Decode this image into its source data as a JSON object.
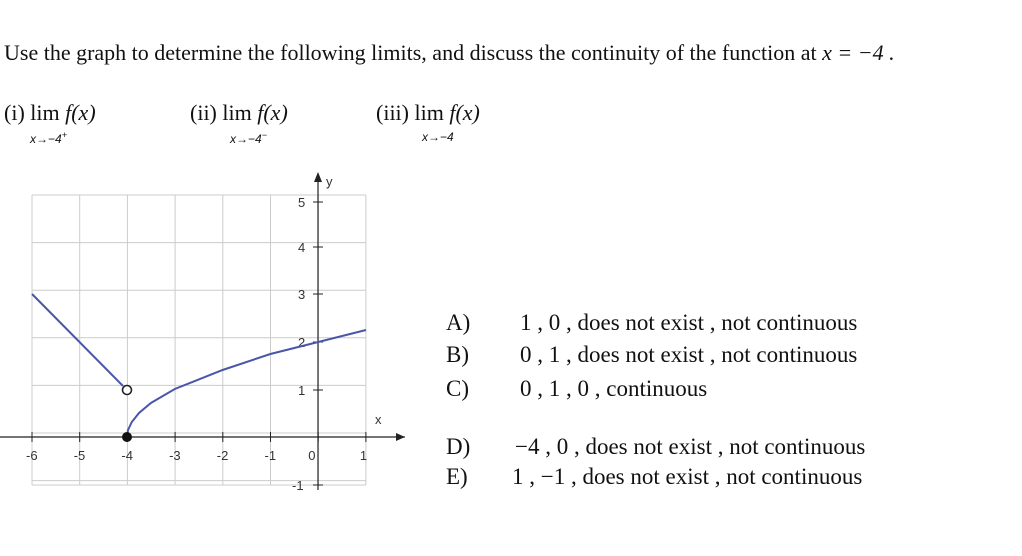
{
  "question": "Use the graph to determine the following limits, and discuss the continuity of the function at",
  "question_math": "x = −4 .",
  "parts": [
    {
      "label": "(i)",
      "limit": "lim",
      "func": "f(x)",
      "sub": "x→−4",
      "sup": "+"
    },
    {
      "label": "(ii)",
      "limit": "lim",
      "func": "f(x)",
      "sub": "x→−4",
      "sup": "−"
    },
    {
      "label": "(iii)",
      "limit": "lim",
      "func": "f(x)",
      "sub": "x→−4"
    }
  ],
  "graph": {
    "x_label": "x",
    "y_label": "y",
    "x_tick_labels": [
      "-6",
      "-5",
      "-4",
      "-3",
      "-2",
      "-1",
      "0",
      "1"
    ],
    "y_tick_labels": [
      "5",
      "4",
      "3",
      "2",
      "1",
      "-1"
    ]
  },
  "choices": [
    {
      "letter": "A)",
      "text": "1 , 0 , does not exist , not continuous"
    },
    {
      "letter": "B)",
      "text": "0 , 1 , does not exist , not continuous"
    },
    {
      "letter": "C)",
      "text": "0 , 1 , 0 , continuous"
    },
    {
      "letter": "D)",
      "text": "−4 , 0 , does not exist , not continuous"
    },
    {
      "letter": "E)",
      "text": "1 , −1 , does not exist , not continuous"
    }
  ]
}
